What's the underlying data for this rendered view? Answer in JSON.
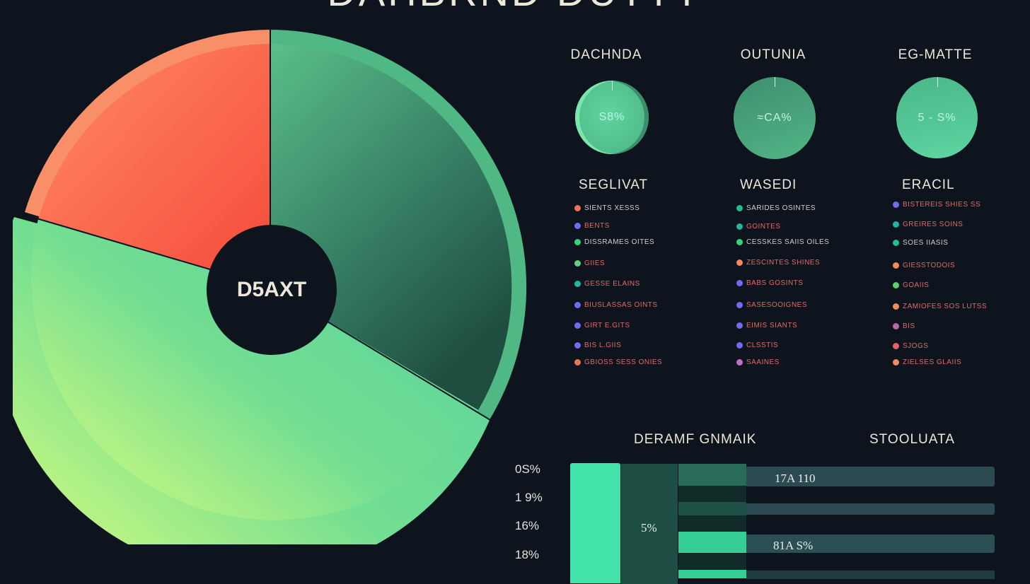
{
  "header": {
    "title": "DAHBRND DUTTY"
  },
  "pie": {
    "center_label": "D5AXT",
    "colors": {
      "red": "#f55a45",
      "dark_green": "#2f6d57",
      "light_green": "#6fdc96",
      "lime": "#c9f57f"
    }
  },
  "gauges": [
    {
      "title": "DACHNDA",
      "value": "S8%"
    },
    {
      "title": "OUTUNIA",
      "value": "≈CA%"
    },
    {
      "title": "EG-MATTE",
      "value": "5 - S%"
    }
  ],
  "legends": [
    {
      "title": "SEGLIVAT",
      "items": [
        {
          "label": "SIENTS XESSS",
          "color": "#f26f5c",
          "text_color": "#cfcfcf"
        },
        {
          "label": "BENTS",
          "color": "#6f6cf0",
          "text_color": "#e06a6a"
        },
        {
          "label": "DISSRAMES OITES",
          "color": "#34d27d",
          "text_color": "#cfcfcf"
        },
        {
          "label": "GIIES",
          "color": "#62d083",
          "text_color": "#e06a6a"
        },
        {
          "label": "GESSE ELAINS",
          "color": "#1fb5a3",
          "text_color": "#e06a6a"
        },
        {
          "label": "BIUSLASSAS OINTS",
          "color": "#6f6cf0",
          "text_color": "#e06a6a"
        },
        {
          "label": "GIRT E.GITS",
          "color": "#6f6cf0",
          "text_color": "#e06a6a"
        },
        {
          "label": "BIS L.GIIS",
          "color": "#6f6cf0",
          "text_color": "#e06a6a"
        },
        {
          "label": "GBIOSS SESS ONIES",
          "color": "#f26f5c",
          "text_color": "#e06a6a"
        }
      ]
    },
    {
      "title": "WASEDI",
      "items": [
        {
          "label": "SARIDES OSINTES",
          "color": "#20c08a",
          "text_color": "#cfcfcf"
        },
        {
          "label": "GOINTES",
          "color": "#1fb5a3",
          "text_color": "#e06a6a"
        },
        {
          "label": "CESSKES SAIIS OILES",
          "color": "#34d27d",
          "text_color": "#cfcfcf"
        },
        {
          "label": "ZESCINTES SHINES",
          "color": "#f28a5c",
          "text_color": "#e06a6a"
        },
        {
          "label": "BABS GOSINTS",
          "color": "#6f6cf0",
          "text_color": "#e06a6a"
        },
        {
          "label": "SASESOOIGNES",
          "color": "#6f6cf0",
          "text_color": "#e06a6a"
        },
        {
          "label": "EIMIS SIANTS",
          "color": "#6f6cf0",
          "text_color": "#e06a6a"
        },
        {
          "label": "CLSSTIS",
          "color": "#6f6cf0",
          "text_color": "#e06a6a"
        },
        {
          "label": "SAAINES",
          "color": "#c06fc0",
          "text_color": "#e06a6a"
        }
      ]
    },
    {
      "title": "ERACIL",
      "items": [
        {
          "label": "BISTEREIS SHIES SS",
          "color": "#6f6cf0",
          "text_color": "#e06a6a"
        },
        {
          "label": "GREIRES SOINS",
          "color": "#1fb5a3",
          "text_color": "#e06a6a"
        },
        {
          "label": "SOES IIASIS",
          "color": "#20c08a",
          "text_color": "#cfcfcf"
        },
        {
          "label": "GIESSTODOIS",
          "color": "#f28a5c",
          "text_color": "#e06a6a"
        },
        {
          "label": "GOAIIS",
          "color": "#5cd070",
          "text_color": "#e06a6a"
        },
        {
          "label": "ZAMIOFES SOS LUTSS",
          "color": "#f28a5c",
          "text_color": "#e06a6a"
        },
        {
          "label": "BIS",
          "color": "#b86aa8",
          "text_color": "#e06a6a"
        },
        {
          "label": "SJOGS",
          "color": "#e86060",
          "text_color": "#e06a6a"
        },
        {
          "label": "ZIELSES GLAIIS",
          "color": "#f28a5c",
          "text_color": "#e06a6a"
        }
      ]
    }
  ],
  "bars_section": {
    "title": "DERAMF GNMAIK",
    "right_title": "STOOLUATA",
    "y_labels": [
      "0S%",
      "1 9%",
      "16%",
      "18%"
    ],
    "column_label": "5%",
    "bar_labels": [
      "17A 110",
      "81A S%"
    ]
  },
  "chart_data": [
    {
      "type": "pie",
      "title": "DAHBRND DUTTY",
      "center_label": "D5AXT",
      "slices": [
        {
          "name": "red segment",
          "value": 20,
          "color": "#f55a45"
        },
        {
          "name": "dark green segment",
          "value": 33,
          "color": "#2f6d57"
        },
        {
          "name": "light green segment",
          "value": 47,
          "color": "#6fdc96"
        }
      ]
    },
    {
      "type": "pie",
      "title": "gauges",
      "series": [
        {
          "name": "DACHNDA",
          "label": "S8%"
        },
        {
          "name": "OUTUNIA",
          "label": "≈CA%"
        },
        {
          "name": "EG-MATTE",
          "label": "5 - S%"
        }
      ]
    },
    {
      "type": "bar",
      "title": "DERAMF GNMAIK",
      "categories": [
        "0S%",
        "1 9%",
        "16%",
        "18%"
      ],
      "series": [
        {
          "name": "column A",
          "values": [
            100,
            100,
            100,
            100
          ]
        },
        {
          "name": "column B",
          "label": "5%",
          "values": [
            100,
            100,
            100,
            100
          ]
        },
        {
          "name": "STOOLUATA",
          "labels": [
            "17A 110",
            "",
            "81A S%",
            ""
          ],
          "values": [
            100,
            100,
            100,
            100
          ]
        }
      ]
    }
  ]
}
